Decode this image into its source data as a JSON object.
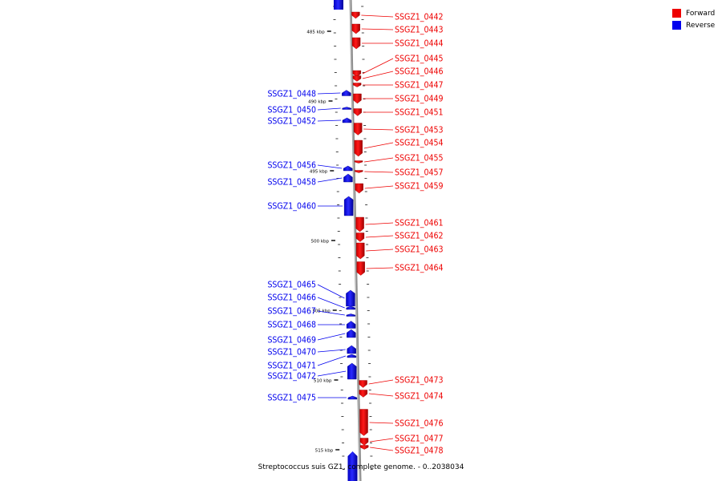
{
  "legend": {
    "forward_label": "Forward",
    "reverse_label": "Reverse",
    "forward_color": "#ee0000",
    "reverse_color": "#0000ee"
  },
  "caption": "Streptococcus suis GZ1, complete genome. - 0..2038034",
  "axis": {
    "ticks": [
      {
        "label": "485 kbp",
        "kbp": 485
      },
      {
        "label": "490 kbp",
        "kbp": 490
      },
      {
        "label": "495 kbp",
        "kbp": 495
      },
      {
        "label": "500 kbp",
        "kbp": 500
      },
      {
        "label": "505 kbp",
        "kbp": 505
      },
      {
        "label": "510 kbp",
        "kbp": 510
      },
      {
        "label": "515 kbp",
        "kbp": 515
      }
    ]
  },
  "forward_genes": [
    {
      "name": "SSGZ1_0442"
    },
    {
      "name": "SSGZ1_0443"
    },
    {
      "name": "SSGZ1_0444"
    },
    {
      "name": "SSGZ1_0445"
    },
    {
      "name": "SSGZ1_0446"
    },
    {
      "name": "SSGZ1_0447"
    },
    {
      "name": "SSGZ1_0449"
    },
    {
      "name": "SSGZ1_0451"
    },
    {
      "name": "SSGZ1_0453"
    },
    {
      "name": "SSGZ1_0454"
    },
    {
      "name": "SSGZ1_0455"
    },
    {
      "name": "SSGZ1_0457"
    },
    {
      "name": "SSGZ1_0459"
    },
    {
      "name": "SSGZ1_0461"
    },
    {
      "name": "SSGZ1_0462"
    },
    {
      "name": "SSGZ1_0463"
    },
    {
      "name": "SSGZ1_0464"
    },
    {
      "name": "SSGZ1_0473"
    },
    {
      "name": "SSGZ1_0474"
    },
    {
      "name": "SSGZ1_0476"
    },
    {
      "name": "SSGZ1_0477"
    },
    {
      "name": "SSGZ1_0478"
    }
  ],
  "reverse_genes": [
    {
      "name": "SSGZ1_0448"
    },
    {
      "name": "SSGZ1_0450"
    },
    {
      "name": "SSGZ1_0452"
    },
    {
      "name": "SSGZ1_0456"
    },
    {
      "name": "SSGZ1_0458"
    },
    {
      "name": "SSGZ1_0460"
    },
    {
      "name": "SSGZ1_0465"
    },
    {
      "name": "SSGZ1_0466"
    },
    {
      "name": "SSGZ1_0467"
    },
    {
      "name": "SSGZ1_0468"
    },
    {
      "name": "SSGZ1_0469"
    },
    {
      "name": "SSGZ1_0470"
    },
    {
      "name": "SSGZ1_0471"
    },
    {
      "name": "SSGZ1_0472"
    },
    {
      "name": "SSGZ1_0475"
    }
  ]
}
